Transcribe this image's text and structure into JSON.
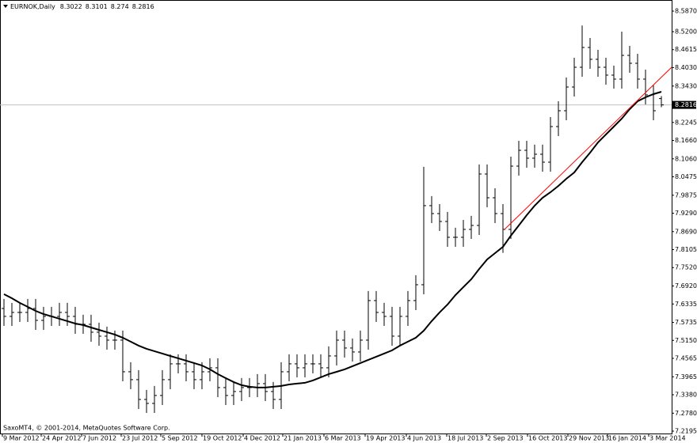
{
  "chart_data": {
    "type": "ohlc",
    "symbol": "EURNOK,Daily",
    "footer": "SaxoMT4, © 2001-2014, MetaQuotes Software Corp.",
    "color": "#000000",
    "open": [
      7.6188,
      7.5931,
      7.606,
      7.606,
      7.6188,
      7.5802,
      7.5931,
      7.5931,
      7.606,
      7.5931,
      7.5673,
      7.5673,
      7.5416,
      7.5287,
      7.5158,
      7.5158,
      7.4128,
      7.3871,
      7.3227,
      7.3098,
      7.3356,
      7.3871,
      7.4386,
      7.4386,
      7.4128,
      7.3871,
      7.4128,
      7.4257,
      7.3613,
      7.3356,
      7.3485,
      7.3613,
      7.3613,
      7.3742,
      7.3485,
      7.3227,
      7.4128,
      7.4386,
      7.4257,
      7.4386,
      7.4386,
      7.4257,
      7.4643,
      7.5158,
      7.4901,
      7.4772,
      7.5158,
      7.6446,
      7.606,
      7.5931,
      7.5287,
      7.5931,
      7.6446,
      7.6961,
      7.9536,
      7.9278,
      7.9021,
      7.8506,
      7.8506,
      7.8763,
      7.8892,
      8.0566,
      7.9793,
      7.9278,
      7.8763,
      8.0823,
      8.1338,
      8.1081,
      8.121,
      8.0952,
      8.2111,
      8.2626,
      8.3398,
      8.4042,
      8.4686,
      8.43,
      8.4042,
      8.3785,
      8.3656,
      8.4428,
      8.4171,
      8.3656,
      8.3141,
      8.3022
    ],
    "high": [
      7.6498,
      7.637,
      7.637,
      7.6498,
      7.6498,
      7.6241,
      7.6241,
      7.637,
      7.637,
      7.6241,
      7.5983,
      7.5983,
      7.5726,
      7.5597,
      7.5468,
      7.5468,
      7.4438,
      7.4181,
      7.3537,
      7.3666,
      7.4181,
      7.4696,
      7.4696,
      7.4696,
      7.4438,
      7.4438,
      7.4567,
      7.4567,
      7.3923,
      7.3795,
      7.3923,
      7.3923,
      7.4052,
      7.4052,
      7.3795,
      7.4438,
      7.4696,
      7.4696,
      7.4696,
      7.4696,
      7.4696,
      7.4953,
      7.5468,
      7.5468,
      7.5211,
      7.5468,
      7.6756,
      7.6756,
      7.637,
      7.6241,
      7.6241,
      7.6756,
      7.7271,
      8.08,
      7.9846,
      7.9588,
      7.9331,
      7.8816,
      7.9073,
      7.9202,
      8.0876,
      8.0876,
      8.0103,
      7.9588,
      8.1133,
      8.1648,
      8.1648,
      8.152,
      8.152,
      8.2421,
      8.2936,
      8.3708,
      8.4352,
      8.54,
      8.4996,
      8.461,
      8.4352,
      8.4095,
      8.52,
      8.4738,
      8.4481,
      8.3966,
      8.3451,
      8.3101
    ],
    "low": [
      7.5621,
      7.5621,
      7.575,
      7.575,
      7.5492,
      7.5492,
      7.5621,
      7.5621,
      7.5621,
      7.5363,
      7.5363,
      7.5106,
      7.4977,
      7.4848,
      7.4848,
      7.3818,
      7.3561,
      7.2917,
      7.2788,
      7.2788,
      7.3046,
      7.3561,
      7.4076,
      7.3818,
      7.3561,
      7.3561,
      7.3818,
      7.3303,
      7.3046,
      7.3046,
      7.3175,
      7.3303,
      7.3303,
      7.3175,
      7.2917,
      7.2917,
      7.3818,
      7.3947,
      7.3947,
      7.4076,
      7.3947,
      7.3947,
      7.4333,
      7.4591,
      7.4462,
      7.4462,
      7.4848,
      7.575,
      7.5621,
      7.4977,
      7.4977,
      7.5621,
      7.6136,
      7.6651,
      7.8968,
      7.8711,
      7.8196,
      7.8196,
      7.8196,
      7.8453,
      7.8582,
      7.9483,
      7.8968,
      7.8,
      7.8453,
      8.0513,
      8.0771,
      8.0771,
      8.0642,
      8.0642,
      8.1801,
      8.2316,
      8.3088,
      8.3732,
      8.399,
      8.3732,
      8.3475,
      8.3346,
      8.3346,
      8.3861,
      8.3346,
      8.2831,
      8.2316,
      8.274
    ],
    "close": [
      7.5931,
      7.606,
      7.606,
      7.6188,
      7.5802,
      7.5931,
      7.5931,
      7.606,
      7.5931,
      7.5673,
      7.5673,
      7.5416,
      7.5287,
      7.5158,
      7.5158,
      7.4128,
      7.3871,
      7.3227,
      7.3098,
      7.3356,
      7.3871,
      7.4386,
      7.4386,
      7.4128,
      7.3871,
      7.4128,
      7.4257,
      7.3613,
      7.3356,
      7.3485,
      7.3613,
      7.3613,
      7.3742,
      7.3485,
      7.3227,
      7.4128,
      7.4386,
      7.4257,
      7.4386,
      7.4386,
      7.4257,
      7.4643,
      7.5158,
      7.4901,
      7.4772,
      7.5158,
      7.6446,
      7.606,
      7.5931,
      7.5287,
      7.5931,
      7.6446,
      7.6961,
      7.9536,
      7.9278,
      7.9021,
      7.8506,
      7.8506,
      7.8763,
      7.8892,
      8.0566,
      7.9793,
      7.9278,
      7.8763,
      8.0823,
      8.1338,
      8.1081,
      8.121,
      8.0952,
      8.2111,
      8.2626,
      8.3398,
      8.4042,
      8.4686,
      8.43,
      8.4042,
      8.3785,
      8.3656,
      8.4428,
      8.4171,
      8.3656,
      8.3141,
      8.2626,
      8.2816
    ],
    "ma": {
      "color": "#000000",
      "values": [
        7.6652,
        7.6523,
        7.6369,
        7.624,
        7.6111,
        7.6008,
        7.5931,
        7.5854,
        7.5777,
        7.5699,
        7.5648,
        7.557,
        7.5493,
        7.5416,
        7.5339,
        7.5236,
        7.5107,
        7.4978,
        7.4875,
        7.4798,
        7.4721,
        7.4643,
        7.4566,
        7.4489,
        7.4412,
        7.4334,
        7.4206,
        7.4051,
        7.3922,
        7.3794,
        7.3691,
        7.3639,
        7.3613,
        7.3613,
        7.3639,
        7.3665,
        7.3716,
        7.3742,
        7.3768,
        7.3845,
        7.3948,
        7.4051,
        7.4128,
        7.4206,
        7.4309,
        7.4412,
        7.4515,
        7.4618,
        7.4721,
        7.4824,
        7.4978,
        7.5107,
        7.5236,
        7.5467,
        7.5777,
        7.606,
        7.6317,
        7.6626,
        7.6884,
        7.7141,
        7.7476,
        7.7785,
        7.7991,
        7.8197,
        7.8558,
        7.8892,
        7.9227,
        7.9536,
        7.9793,
        7.9974,
        8.018,
        8.0411,
        8.0617,
        8.0952,
        8.1261,
        8.1596,
        8.1854,
        8.2111,
        8.2369,
        8.2678,
        8.2935,
        8.3064,
        8.3167,
        8.3244
      ]
    },
    "trendline": {
      "color": "#ff0000",
      "x": [
        63.2,
        84.3
      ],
      "y": [
        7.8763,
        8.4042
      ]
    },
    "price_line_color": "#c0c0c0",
    "xlim": [
      -0.5,
      84.3
    ],
    "xticks": [
      {
        "value": -0.2,
        "label": "9 Mar 2012"
      },
      {
        "value": 4.7,
        "label": "24 Apr 2012"
      },
      {
        "value": 9.8,
        "label": "7 Jun 2012"
      },
      {
        "value": 14.8,
        "label": "23 Jul 2012"
      },
      {
        "value": 19.8,
        "label": "5 Sep 2012"
      },
      {
        "value": 25,
        "label": "19 Oct 2012"
      },
      {
        "value": 30.2,
        "label": "4 Dec 2012"
      },
      {
        "value": 35.2,
        "label": "21 Jan 2013"
      },
      {
        "value": 40.4,
        "label": "6 Mar 2013"
      },
      {
        "value": 45.6,
        "label": "19 Apr 2013"
      },
      {
        "value": 50.8,
        "label": "4 Jun 2013"
      },
      {
        "value": 55.9,
        "label": "18 Jul 2013"
      },
      {
        "value": 60.9,
        "label": "2 Sep 2013"
      },
      {
        "value": 66.1,
        "label": "16 Oct 2013"
      },
      {
        "value": 71.2,
        "label": "29 Nov 2013"
      },
      {
        "value": 76.2,
        "label": "16 Jan 2014"
      },
      {
        "value": 81.4,
        "label": "3 Mar 2014"
      }
    ],
    "ylim": [
      7.2118,
      8.6231
    ],
    "yticks": [
      {
        "value": 8.587,
        "label": "8.5870"
      },
      {
        "value": 8.52,
        "label": "8.5200"
      },
      8.4615,
      {
        "value": 8.403,
        "label": "8.4030"
      },
      {
        "value": 8.343,
        "label": "8.3430"
      },
      8.2245,
      {
        "value": 8.166,
        "label": "8.1660"
      },
      {
        "value": 8.106,
        "label": "8.1060"
      },
      8.0475,
      7.9875,
      {
        "value": 7.929,
        "label": "7.9290"
      },
      {
        "value": 7.869,
        "label": "7.8690"
      },
      7.8105,
      {
        "value": 7.752,
        "label": "7.7520"
      },
      {
        "value": 7.692,
        "label": "7.6920"
      },
      7.6335,
      7.5735,
      {
        "value": 7.515,
        "label": "7.5150"
      },
      7.4565,
      7.3965,
      {
        "value": 7.338,
        "label": "7.3380"
      },
      {
        "value": 7.278,
        "label": "7.2780"
      },
      7.2195
    ]
  }
}
